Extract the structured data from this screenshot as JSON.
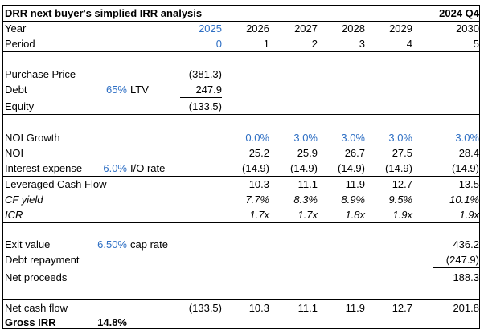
{
  "title": "DRR next buyer's simplied IRR analysis",
  "period_label": "2024 Q4",
  "year": {
    "label": "Year",
    "values": [
      "2025",
      "2026",
      "2027",
      "2028",
      "2029",
      "2030"
    ]
  },
  "period": {
    "label": "Period",
    "values": [
      "0",
      "1",
      "2",
      "3",
      "4",
      "5"
    ]
  },
  "purchase_price": {
    "label": "Purchase Price",
    "value": "(381.3)"
  },
  "debt": {
    "label": "Debt",
    "ltv_value": "65%",
    "ltv_label": "LTV",
    "value": "247.9"
  },
  "equity": {
    "label": "Equity",
    "value": "(133.5)"
  },
  "noi_growth": {
    "label": "NOI Growth",
    "values": [
      "0.0%",
      "3.0%",
      "3.0%",
      "3.0%",
      "3.0%"
    ]
  },
  "noi": {
    "label": "NOI",
    "values": [
      "25.2",
      "25.9",
      "26.7",
      "27.5",
      "28.4"
    ]
  },
  "interest": {
    "label": "Interest expense",
    "rate_value": "6.0%",
    "rate_label": "I/O rate",
    "values": [
      "(14.9)",
      "(14.9)",
      "(14.9)",
      "(14.9)",
      "(14.9)"
    ]
  },
  "lcf": {
    "label": "Leveraged Cash Flow",
    "values": [
      "10.3",
      "11.1",
      "11.9",
      "12.7",
      "13.5"
    ]
  },
  "cf_yield": {
    "label": "CF yield",
    "values": [
      "7.7%",
      "8.3%",
      "8.9%",
      "9.5%",
      "10.1%"
    ]
  },
  "icr": {
    "label": "ICR",
    "values": [
      "1.7x",
      "1.7x",
      "1.8x",
      "1.9x",
      "1.9x"
    ]
  },
  "exit_value": {
    "label": "Exit value",
    "cap_value": "6.50%",
    "cap_label": "cap rate",
    "value": "436.2"
  },
  "debt_repayment": {
    "label": "Debt repayment",
    "value": "(247.9)"
  },
  "net_proceeds": {
    "label": "Net proceeds",
    "value": "188.3"
  },
  "net_cash_flow": {
    "label": "Net cash flow",
    "values": [
      "(133.5)",
      "10.3",
      "11.1",
      "11.9",
      "12.7",
      "201.8"
    ]
  },
  "gross_irr": {
    "label": "Gross IRR",
    "value": "14.8%"
  }
}
